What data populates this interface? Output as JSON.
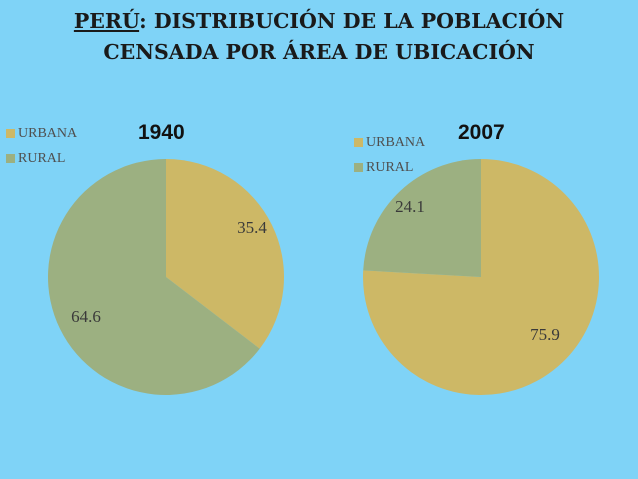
{
  "title": {
    "part1": "PERÚ",
    "part2": ": DISTRIBUCIÓN DE LA POBLACIÓN",
    "line2": "CENSADA POR ÁREA DE UBICACIÓN"
  },
  "colors": {
    "urbana": "#cdb866",
    "rural": "#9cb081",
    "background": "#7fd3f7"
  },
  "chart_data": [
    {
      "type": "pie",
      "title": "1940",
      "categories": [
        "URBANA",
        "RURAL"
      ],
      "values": [
        35.4,
        64.6
      ],
      "legend": "top-left"
    },
    {
      "type": "pie",
      "title": "2007",
      "categories": [
        "URBANA",
        "RURAL"
      ],
      "values": [
        75.9,
        24.1
      ],
      "legend": "top-left"
    }
  ]
}
